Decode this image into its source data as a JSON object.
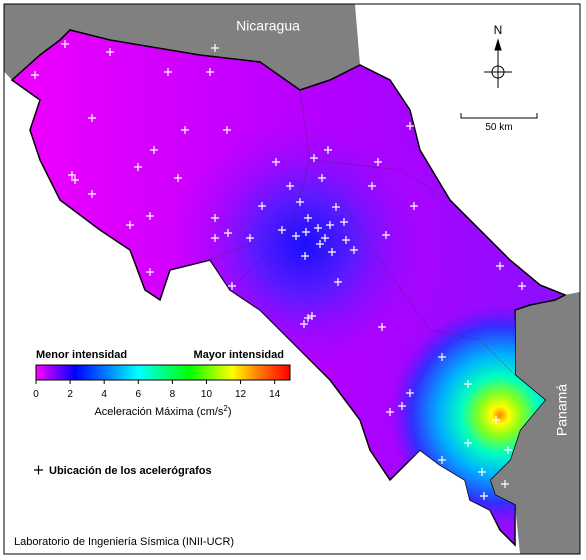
{
  "map": {
    "labels": {
      "north": "Nicaragua",
      "east": "Panamá",
      "compass": "N",
      "scale": "50 km"
    },
    "colorbar": {
      "min_label": "Menor intensidad",
      "max_label": "Mayor intensidad",
      "range": [
        0,
        14.9
      ],
      "ticks": [
        0,
        2,
        4,
        6,
        8,
        10,
        12,
        14
      ],
      "stops": [
        [
          0,
          "#ff00ff"
        ],
        [
          2.3,
          "#0000ff"
        ],
        [
          6,
          "#00ffff"
        ],
        [
          9,
          "#00ff00"
        ],
        [
          11.5,
          "#ffff00"
        ],
        [
          13,
          "#ff8000"
        ],
        [
          14.9,
          "#ff0000"
        ]
      ],
      "title": "Aceleración Máxima (cm/s",
      "title_sup": "2",
      "title_end": ")"
    },
    "legend": "Ubicación de los acelerógrafos",
    "credit": "Laboratorio de Ingeniería Sísmica (INII-UCR)"
  }
}
